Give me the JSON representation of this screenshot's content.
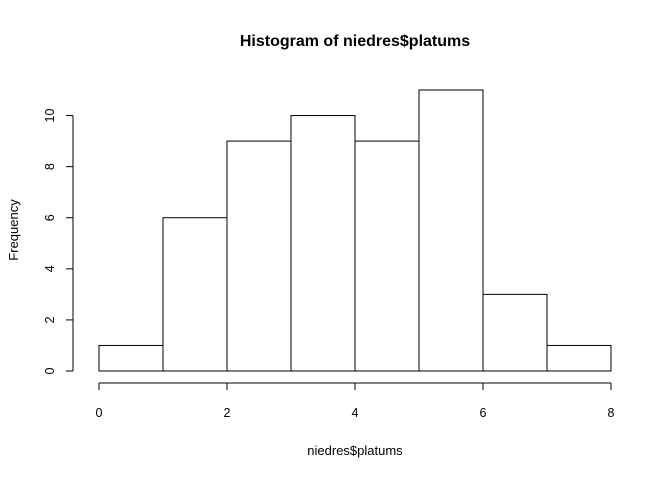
{
  "chart_data": {
    "type": "bar",
    "title": "Histogram of niedres$platums",
    "xlabel": "niedres$platums",
    "ylabel": "Frequency",
    "bins": [
      {
        "from": 0,
        "to": 1,
        "count": 1
      },
      {
        "from": 1,
        "to": 2,
        "count": 6
      },
      {
        "from": 2,
        "to": 3,
        "count": 9
      },
      {
        "from": 3,
        "to": 4,
        "count": 10
      },
      {
        "from": 4,
        "to": 5,
        "count": 9
      },
      {
        "from": 5,
        "to": 6,
        "count": 11
      },
      {
        "from": 6,
        "to": 7,
        "count": 3
      },
      {
        "from": 7,
        "to": 8,
        "count": 1
      }
    ],
    "xlim": [
      0,
      8
    ],
    "ylim": [
      0,
      11
    ],
    "x_ticks": [
      0,
      2,
      4,
      6,
      8
    ],
    "y_ticks": [
      0,
      2,
      4,
      6,
      8,
      10
    ],
    "x_tick_labels": [
      "0",
      "2",
      "4",
      "6",
      "8"
    ],
    "y_tick_labels": [
      "0",
      "2",
      "4",
      "6",
      "8",
      "10"
    ],
    "grid": false,
    "bar_fill": "#ffffff",
    "bar_stroke": "#000000"
  }
}
